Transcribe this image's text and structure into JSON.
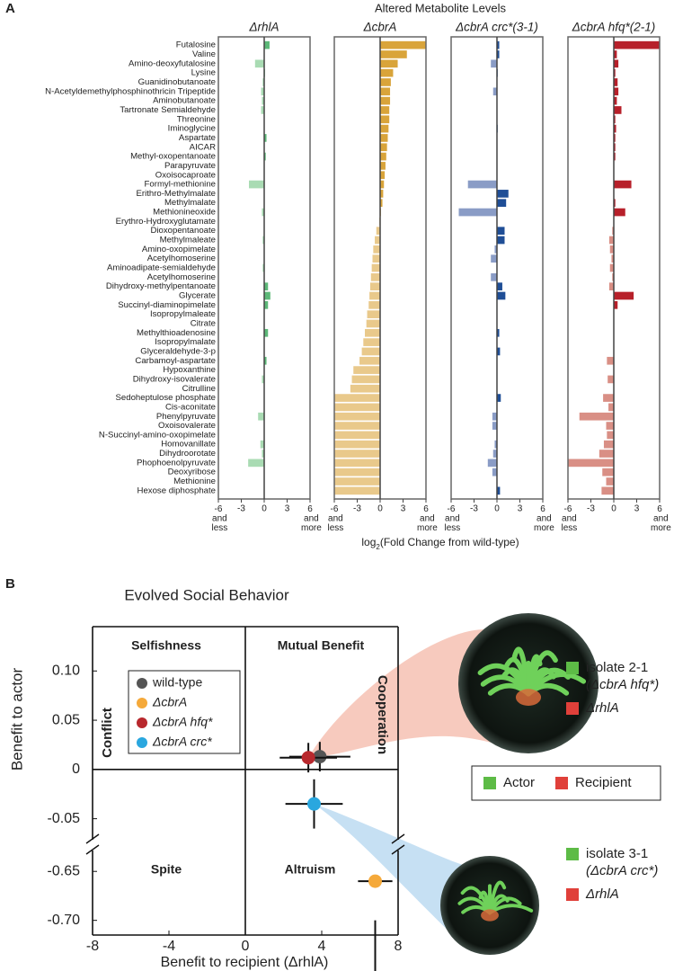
{
  "chart_data": [
    {
      "type": "bar",
      "orientation": "horizontal",
      "panel_label": "A",
      "title": "Altered Metabolite Levels",
      "x_label": [
        "log",
        "2",
        "(Fold Change from wild-type)"
      ],
      "categories": [
        "Futalosine",
        "Valine",
        "Amino-deoxyfutalosine",
        "Lysine",
        "Guanidinobutanoate",
        "N-Acetyldemethylphosphinothricin Tripeptide",
        "Aminobutanoate",
        "Tartronate Semialdehyde",
        "Threonine",
        "Iminoglycine",
        "Aspartate",
        "AICAR",
        "Methyl-oxopentanoate",
        "Parapyruvate",
        "Oxoisocaproate",
        "Formyl-methionine",
        "Erithro-Methylmalate",
        "Methylmalate",
        "Methionineoxide",
        "Erythro-Hydroxyglutamate",
        "Dioxopentanoate",
        "Methylmaleate",
        "Amino-oxopimelate",
        "Acetylhomoserine",
        "Aminoadipate-semialdehyde",
        "Acetylhomoserine",
        "Dihydroxy-methylpentanoate",
        "Glycerate",
        "Succinyl-diaminopimelate",
        "Isopropylmaleate",
        "Citrate",
        "Methylthioadenosine",
        "Isopropylmalate",
        "Glyceraldehyde-3-p",
        "Carbamoyl-aspartate",
        "Hypoxanthine",
        "Dihydroxy-isovalerate",
        "Citrulline",
        "Sedoheptulose phosphate",
        "Cis-aconitate",
        "Phenylpyruvate",
        "Oxoisovalerate",
        "N-Succinyl-amino-oxopimelate",
        "Homovanillate",
        "Dihydroorotate",
        "Phophoenolpyruvate",
        "Deoxyribose",
        "Methionine",
        "Hexose diphosphate"
      ],
      "xlim": [
        -6,
        6
      ],
      "xticks": [
        {
          "value": -6,
          "label": "-6 and less"
        },
        -3,
        0,
        3,
        {
          "value": 6,
          "label": "6 and more"
        }
      ],
      "series": [
        {
          "name": "ΔrhlA",
          "color": "#5cb878",
          "negative_color": "#a9dbb3",
          "values": [
            0.7,
            0,
            -1.2,
            0.1,
            -0.2,
            -0.4,
            -0.3,
            -0.4,
            0,
            0,
            0.3,
            0,
            0.2,
            0,
            0,
            -2.0,
            0,
            0,
            -0.3,
            0,
            0,
            -0.2,
            0,
            0,
            -0.2,
            0,
            0.5,
            0.8,
            0.5,
            0,
            0,
            0.5,
            0,
            0,
            0.3,
            0,
            -0.3,
            0,
            0,
            0,
            -0.8,
            0,
            0,
            -0.5,
            -0.3,
            -2.1,
            0,
            0,
            0
          ]
        },
        {
          "name": "ΔcbrA",
          "color": "#d9a43a",
          "negative_color": "#e9c98b",
          "values": [
            6,
            3.5,
            2.3,
            1.7,
            1.4,
            1.3,
            1.3,
            1.2,
            1.2,
            1.1,
            1.0,
            0.9,
            0.8,
            0.7,
            0.6,
            0.5,
            0.4,
            0.3,
            0.1,
            -0.1,
            -0.5,
            -0.7,
            -0.9,
            -1.0,
            -1.1,
            -1.2,
            -1.3,
            -1.4,
            -1.5,
            -1.7,
            -1.8,
            -2.0,
            -2.2,
            -2.4,
            -2.7,
            -3.5,
            -3.7,
            -3.9,
            -6,
            -6,
            -6,
            -6,
            -6,
            -6,
            -6,
            -6,
            -6,
            -6,
            -6
          ]
        },
        {
          "name": "ΔcbrA crc*(3-1)",
          "color": "#1f4e96",
          "negative_color": "#8a9cc6",
          "values": [
            0.3,
            0.3,
            -0.8,
            0.1,
            0,
            -0.5,
            0,
            0,
            0,
            0.1,
            0,
            0,
            0,
            0,
            0,
            -3.8,
            1.5,
            1.2,
            -5.0,
            0,
            1.0,
            1.0,
            -0.3,
            -0.8,
            0,
            -0.8,
            0.7,
            1.1,
            0,
            0,
            0,
            0.3,
            0,
            0.4,
            0,
            0,
            0,
            0,
            0.5,
            0,
            -0.6,
            -0.6,
            0,
            -0.3,
            -0.5,
            -1.2,
            -0.6,
            0,
            0.4
          ]
        },
        {
          "name": "ΔcbrA hfq*(2-1)",
          "color": "#b7202a",
          "negative_color": "#d98f85",
          "values": [
            6,
            0.4,
            0.6,
            0.2,
            0.5,
            0.6,
            0.4,
            1.0,
            0.2,
            0.3,
            0.2,
            0.2,
            0.2,
            0,
            0,
            2.3,
            0,
            0.2,
            1.5,
            0,
            -0.2,
            -0.6,
            -0.5,
            -0.3,
            -0.5,
            -0.2,
            -0.6,
            2.6,
            0.5,
            0,
            0,
            0,
            0,
            0,
            -0.9,
            0,
            -0.8,
            0,
            -1.4,
            -0.7,
            -4.5,
            -1.0,
            -0.9,
            -1.3,
            -1.9,
            -6,
            -1.5,
            -1.0,
            -1.6
          ]
        }
      ]
    },
    {
      "type": "scatter",
      "panel_label": "B",
      "title": "Evolved Social Behavior",
      "x_label": "Benefit to recipient (ΔrhlA)",
      "y_label": "Benefit to actor",
      "xlim": [
        -8,
        8
      ],
      "xticks": [
        -8,
        -4,
        0,
        4,
        8
      ],
      "ysegments": [
        {
          "ylim": [
            -0.075,
            0.145
          ],
          "yticks": [
            {
              "value": 0.1,
              "label": "0.10"
            },
            0.05,
            0,
            -0.05
          ]
        },
        {
          "ylim": [
            -0.715,
            -0.625
          ],
          "yticks": [
            -0.65,
            {
              "value": -0.7,
              "label": "-0.70"
            }
          ]
        }
      ],
      "quadrant_labels": [
        "Selfishness",
        "Mutual Benefit",
        "Spite",
        "Altruism"
      ],
      "side_labels": [
        "Conflict",
        "Cooperation"
      ],
      "series": [
        {
          "name": "wild-type",
          "color": "#555555",
          "x": [
            3.9
          ],
          "values": [
            0.013
          ],
          "xerr": [
            1.6
          ],
          "yerr": [
            0.015
          ]
        },
        {
          "name": "ΔcbrA",
          "color": "#f5a93a",
          "x": [
            6.8
          ],
          "values": [
            -0.66
          ],
          "xerr": [
            0.9
          ],
          "yerr": [
            0.04
          ]
        },
        {
          "name": "ΔcbrA hfq*",
          "color": "#b8282d",
          "x": [
            3.3
          ],
          "values": [
            0.012
          ],
          "xerr": [
            1.5
          ],
          "yerr": [
            0.015
          ]
        },
        {
          "name": "ΔcbrA crc*",
          "color": "#2aa7df",
          "x": [
            3.6
          ],
          "values": [
            -0.035
          ],
          "xerr": [
            1.5
          ],
          "yerr": [
            0.025
          ]
        }
      ],
      "insets": [
        {
          "isolate": "isolate 2-1",
          "strain": "(ΔcbrA hfq*)",
          "recipient": "ΔrhlA"
        },
        {
          "isolate": "isolate 3-1",
          "strain": "(ΔcbrA crc*)",
          "recipient": "ΔrhlA"
        }
      ],
      "role_legend": [
        "Actor",
        "Recipient"
      ]
    }
  ]
}
